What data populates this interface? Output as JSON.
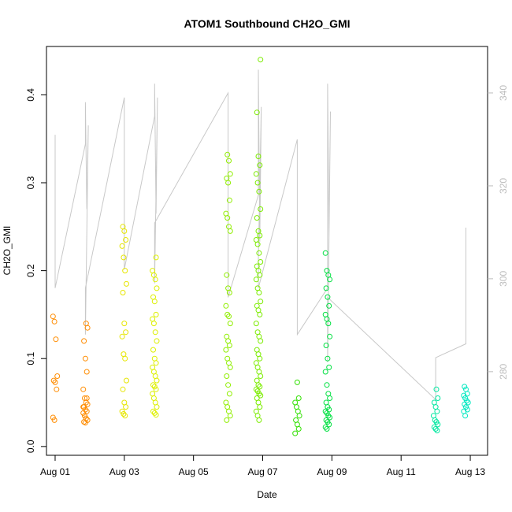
{
  "chart_data": {
    "type": "scatter",
    "title": "ATOM1 Southbound CH2O_GMI",
    "xlabel": "Date",
    "ylabel": "CH2O_GMI",
    "xlim": [
      "2021-07-31T18:00",
      "2021-08-13T12:00"
    ],
    "ylim": [
      -0.01,
      0.455
    ],
    "x_ticks": [
      "Aug 01",
      "Aug 03",
      "Aug 05",
      "Aug 07",
      "Aug 09",
      "Aug 11",
      "Aug 13"
    ],
    "y_ticks": [
      "0.0",
      "0.1",
      "0.2",
      "0.3",
      "0.4"
    ],
    "y2_ticks": [
      "280",
      "300",
      "320",
      "340"
    ],
    "y2lim": [
      262,
      350
    ],
    "grid": false,
    "legend": "none",
    "marker": "open-circle",
    "color_scale": "hue by date: orange (Aug 01) to cyan (Aug 13)",
    "secondary_line_color": "#c8c8c8",
    "series": [
      {
        "role": "points",
        "clusters": [
          {
            "date": "2021-08-01T00:00",
            "color": "#ff8c00",
            "values": [
              0.148,
              0.142,
              0.122,
              0.08,
              0.075,
              0.073,
              0.065,
              0.033,
              0.03
            ]
          },
          {
            "date": "2021-08-01T21:00",
            "color": "#ff8c00",
            "values": [
              0.14,
              0.135,
              0.12,
              0.1,
              0.085,
              0.065,
              0.055,
              0.05,
              0.048,
              0.045,
              0.042,
              0.04,
              0.038,
              0.035,
              0.032,
              0.03,
              0.028,
              0.027,
              0.055,
              0.045,
              0.035
            ]
          },
          {
            "date": "2021-08-03T00:00",
            "color": "#e6e600",
            "values": [
              0.25,
              0.245,
              0.235,
              0.228,
              0.215,
              0.2,
              0.185,
              0.175,
              0.14,
              0.13,
              0.125,
              0.105,
              0.1,
              0.075,
              0.065,
              0.05,
              0.045,
              0.04,
              0.037,
              0.035
            ]
          },
          {
            "date": "2021-08-03T21:00",
            "color": "#ddf000",
            "values": [
              0.215,
              0.2,
              0.195,
              0.19,
              0.18,
              0.17,
              0.165,
              0.15,
              0.145,
              0.14,
              0.13,
              0.12,
              0.11,
              0.1,
              0.095,
              0.09,
              0.085,
              0.08,
              0.075,
              0.07,
              0.068,
              0.065,
              0.06,
              0.055,
              0.05,
              0.045,
              0.04,
              0.038,
              0.036
            ]
          },
          {
            "date": "2021-08-06T00:00",
            "color": "#90ee00",
            "values": [
              0.332,
              0.325,
              0.31,
              0.305,
              0.3,
              0.28,
              0.265,
              0.26,
              0.25,
              0.245,
              0.195,
              0.18,
              0.175,
              0.16,
              0.15,
              0.148,
              0.14,
              0.125,
              0.12,
              0.115,
              0.11,
              0.1,
              0.095,
              0.09,
              0.08,
              0.07,
              0.06,
              0.05,
              0.045,
              0.04,
              0.035,
              0.03
            ]
          },
          {
            "date": "2021-08-06T21:00",
            "color": "#7cec00",
            "values": [
              0.44,
              0.38,
              0.33,
              0.32,
              0.31,
              0.3,
              0.29,
              0.27,
              0.26,
              0.245,
              0.24,
              0.235,
              0.23,
              0.22,
              0.21,
              0.205,
              0.2,
              0.195,
              0.19,
              0.18,
              0.175,
              0.165,
              0.16,
              0.155,
              0.15,
              0.14,
              0.13,
              0.125,
              0.12,
              0.11,
              0.105,
              0.1,
              0.095,
              0.09,
              0.085,
              0.08,
              0.075,
              0.07,
              0.068,
              0.065,
              0.063,
              0.06,
              0.058,
              0.055,
              0.05,
              0.045,
              0.04,
              0.035,
              0.03
            ]
          },
          {
            "date": "2021-08-08T00:00",
            "color": "#30e000",
            "values": [
              0.073,
              0.055,
              0.05,
              0.045,
              0.04,
              0.035,
              0.03,
              0.025,
              0.02,
              0.015
            ]
          },
          {
            "date": "2021-08-08T21:00",
            "color": "#00e040",
            "values": [
              0.22,
              0.2,
              0.195,
              0.19,
              0.18,
              0.17,
              0.16,
              0.15,
              0.145,
              0.14,
              0.125,
              0.115,
              0.1,
              0.09,
              0.085,
              0.07,
              0.06,
              0.055,
              0.05,
              0.045,
              0.042,
              0.04,
              0.038,
              0.035,
              0.033,
              0.03,
              0.028,
              0.025,
              0.022,
              0.02
            ]
          },
          {
            "date": "2021-08-12T00:00",
            "color": "#00e8a0",
            "values": [
              0.065,
              0.055,
              0.05,
              0.045,
              0.04,
              0.035,
              0.03,
              0.028,
              0.025,
              0.022,
              0.02,
              0.018
            ]
          },
          {
            "date": "2021-08-12T21:00",
            "color": "#00e8c0",
            "values": [
              0.068,
              0.065,
              0.06,
              0.058,
              0.055,
              0.052,
              0.05,
              0.048,
              0.045,
              0.042,
              0.04,
              0.035
            ]
          }
        ]
      },
      {
        "role": "secondary-line",
        "axis": "right",
        "x": [
          "2021-08-01T00:00",
          "2021-08-01T00:00",
          "2021-08-01T21:00",
          "2021-08-01T21:00",
          "2021-08-01T22:00",
          "2021-08-01T23:00",
          "2021-08-01T21:00",
          "2021-08-01T21:00",
          "2021-08-03T00:00",
          "2021-08-03T00:00",
          "2021-08-03T21:00",
          "2021-08-03T21:00",
          "2021-08-03T22:00",
          "2021-08-03T23:00",
          "2021-08-03T21:00",
          "2021-08-03T21:00",
          "2021-08-06T00:00",
          "2021-08-06T00:00",
          "2021-08-06T21:00",
          "2021-08-06T21:00",
          "2021-08-06T22:00",
          "2021-08-06T23:00",
          "2021-08-06T21:00",
          "2021-08-06T21:00",
          "2021-08-08T00:00",
          "2021-08-08T00:00",
          "2021-08-08T21:00",
          "2021-08-08T21:00",
          "2021-08-08T22:00",
          "2021-08-08T23:00",
          "2021-08-08T21:00",
          "2021-08-08T21:00",
          "2021-08-12T00:00",
          "2021-08-12T00:00",
          "2021-08-12T21:00",
          "2021-08-12T21:00"
        ],
        "values": [
          331,
          298,
          329,
          338,
          315,
          333,
          288,
          298,
          339,
          302,
          335,
          342,
          314,
          339,
          299,
          312,
          340,
          296,
          318,
          345,
          308,
          337,
          304,
          298,
          330,
          288,
          298,
          342,
          309,
          336,
          282,
          296,
          274,
          283,
          286,
          311
        ]
      }
    ]
  }
}
